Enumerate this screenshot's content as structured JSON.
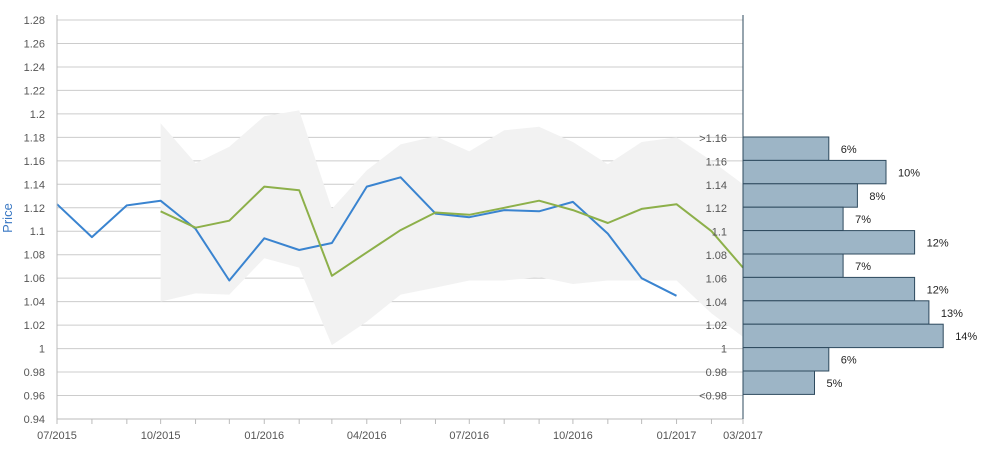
{
  "chart_data": {
    "type": "line",
    "ylabel": "Price",
    "ylim": [
      0.94,
      1.28
    ],
    "yticks": [
      "0.94",
      "0.96",
      "0.98",
      "1",
      "1.02",
      "1.04",
      "1.06",
      "1.08",
      "1.1",
      "1.12",
      "1.14",
      "1.16",
      "1.18",
      "1.2",
      "1.22",
      "1.24",
      "1.26",
      "1.28"
    ],
    "xlim": [
      "2015-07-01",
      "2017-03-01"
    ],
    "xticks": [
      {
        "date": "2015-07-01",
        "label": "07/2015"
      },
      {
        "date": "2015-10-01",
        "label": "10/2015"
      },
      {
        "date": "2016-01-01",
        "label": "01/2016"
      },
      {
        "date": "2016-04-01",
        "label": "04/2016"
      },
      {
        "date": "2016-07-01",
        "label": "07/2016"
      },
      {
        "date": "2016-10-01",
        "label": "10/2016"
      },
      {
        "date": "2017-01-01",
        "label": "01/2017"
      },
      {
        "date": "2017-03-01",
        "label": "03/2017"
      }
    ],
    "grid": true,
    "colors": {
      "series_blue": "#3a84d0",
      "series_green": "#8db04a",
      "band": "#f2f2f2",
      "bars": "#9db5c6",
      "bar_border": "#2e4a5e",
      "grid": "#cccccc",
      "ylabel": "#3a78c3"
    },
    "band": {
      "x": [
        "2015-10-01",
        "2015-11-01",
        "2015-12-01",
        "2016-01-01",
        "2016-02-01",
        "2016-03-01",
        "2016-04-01",
        "2016-05-01",
        "2016-06-01",
        "2016-07-01",
        "2016-08-01",
        "2016-09-01",
        "2016-10-01",
        "2016-11-01",
        "2016-12-01",
        "2017-01-01",
        "2017-02-01",
        "2017-03-01"
      ],
      "upper": [
        1.192,
        1.158,
        1.172,
        1.198,
        1.203,
        1.119,
        1.152,
        1.174,
        1.181,
        1.168,
        1.186,
        1.189,
        1.176,
        1.157,
        1.176,
        1.18,
        1.16,
        1.14
      ],
      "lower": [
        1.04,
        1.047,
        1.046,
        1.077,
        1.069,
        1.003,
        1.023,
        1.046,
        1.052,
        1.058,
        1.058,
        1.061,
        1.055,
        1.058,
        1.058,
        1.058,
        1.03,
        1.01
      ]
    },
    "series": [
      {
        "x": [
          "2015-07-01",
          "2015-08-01",
          "2015-09-01",
          "2015-10-01",
          "2015-11-01",
          "2015-12-01",
          "2016-01-01",
          "2016-02-01",
          "2016-03-01",
          "2016-04-01",
          "2016-05-01",
          "2016-06-01",
          "2016-07-01",
          "2016-08-01",
          "2016-09-01",
          "2016-10-01",
          "2016-11-01",
          "2016-12-01",
          "2017-01-01"
        ],
        "values": [
          1.123,
          1.095,
          1.122,
          1.126,
          1.102,
          1.058,
          1.094,
          1.084,
          1.09,
          1.138,
          1.146,
          1.115,
          1.112,
          1.118,
          1.117,
          1.125,
          1.098,
          1.06,
          1.045
        ]
      },
      {
        "x": [
          "2015-10-01",
          "2015-11-01",
          "2015-12-01",
          "2016-01-01",
          "2016-02-01",
          "2016-03-01",
          "2016-04-01",
          "2016-05-01",
          "2016-06-01",
          "2016-07-01",
          "2016-08-01",
          "2016-09-01",
          "2016-10-01",
          "2016-11-01",
          "2016-12-01",
          "2017-01-01",
          "2017-02-01",
          "2017-03-01"
        ],
        "values": [
          1.117,
          1.103,
          1.109,
          1.138,
          1.135,
          1.062,
          1.082,
          1.101,
          1.116,
          1.114,
          1.12,
          1.126,
          1.118,
          1.107,
          1.119,
          1.123,
          1.1,
          1.069
        ]
      }
    ],
    "distribution": [
      {
        "label": ">1.16",
        "percent": 6,
        "text": "6%"
      },
      {
        "label": "1.16",
        "percent": 10,
        "text": "10%"
      },
      {
        "label": "1.14",
        "percent": 8,
        "text": "8%"
      },
      {
        "label": "1.12",
        "percent": 7,
        "text": "7%"
      },
      {
        "label": "1.1",
        "percent": 12,
        "text": "12%"
      },
      {
        "label": "1.08",
        "percent": 7,
        "text": "7%"
      },
      {
        "label": "1.06",
        "percent": 12,
        "text": "12%"
      },
      {
        "label": "1.04",
        "percent": 13,
        "text": "13%"
      },
      {
        "label": "1.02",
        "percent": 14,
        "text": "14%"
      },
      {
        "label": "1",
        "percent": 6,
        "text": "6%"
      },
      {
        "label": "0.98",
        "percent": 5,
        "text": "5%"
      },
      {
        "label": "<0.98",
        "percent": 0,
        "text": ""
      }
    ]
  }
}
